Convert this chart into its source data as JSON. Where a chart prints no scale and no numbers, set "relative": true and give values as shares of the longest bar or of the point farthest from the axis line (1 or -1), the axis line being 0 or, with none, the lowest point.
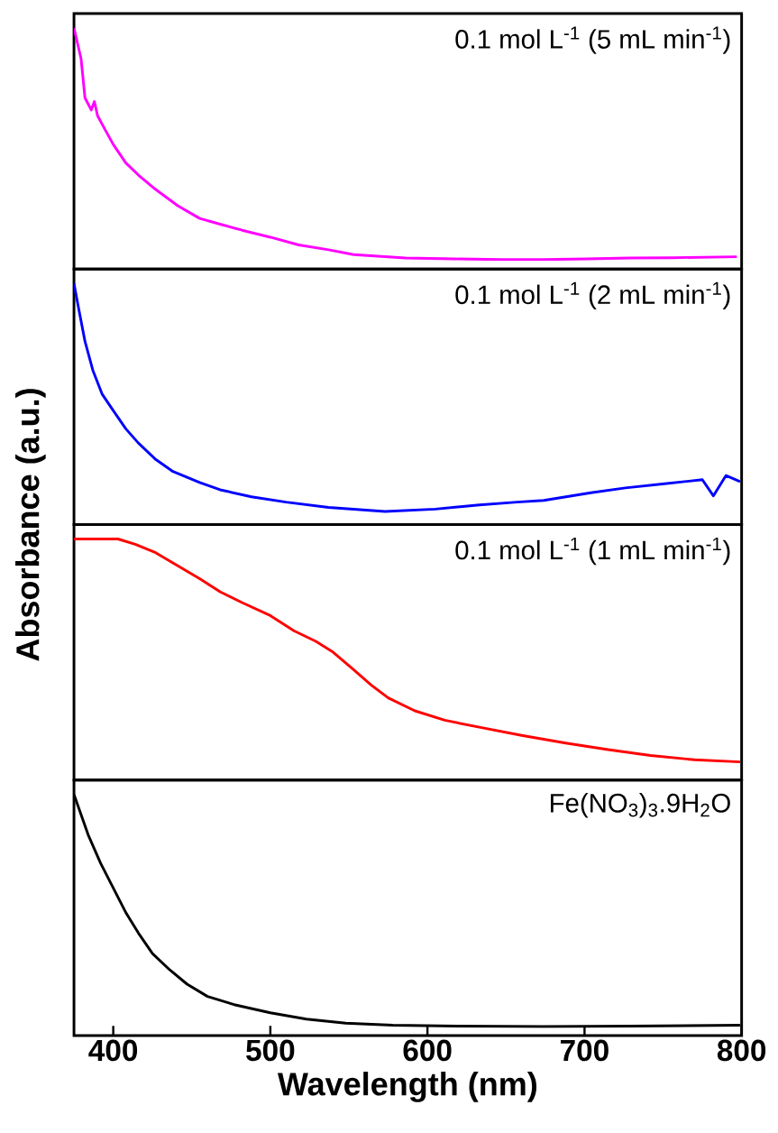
{
  "chart_data": [
    {
      "type": "line",
      "relative": true,
      "ylabel": "Absorbance (a.u.)",
      "xlim": [
        375,
        800
      ],
      "tick_labels": false,
      "x": [
        375,
        379.5,
        382,
        386,
        388,
        390,
        395,
        400,
        408,
        416,
        427,
        441,
        455,
        468,
        482,
        500,
        518,
        537,
        553,
        586,
        617,
        647,
        674,
        701,
        729,
        756,
        797
      ],
      "series": [
        {
          "name": "0.1 mol L$^{-1}$ (5 mL min$^{-1}$)",
          "color": "#ff00ff",
          "values": [
            1.0,
            0.873,
            0.71,
            0.66,
            0.695,
            0.636,
            0.576,
            0.517,
            0.44,
            0.39,
            0.33,
            0.263,
            0.21,
            0.186,
            0.161,
            0.132,
            0.1,
            0.08,
            0.06,
            0.046,
            0.042,
            0.039,
            0.039,
            0.042,
            0.046,
            0.047,
            0.051
          ]
        }
      ]
    },
    {
      "type": "line",
      "relative": true,
      "xlim": [
        375,
        800
      ],
      "tick_labels": false,
      "x": [
        375,
        378,
        382,
        387,
        393,
        400,
        408,
        416,
        427,
        438,
        455,
        468,
        488,
        510,
        537,
        573,
        605,
        633,
        657,
        674,
        704,
        726,
        751,
        775,
        782,
        790,
        799
      ],
      "series": [
        {
          "name": "0.1 mol L$^{-1}$ (2 mL min$^{-1}$)",
          "color": "#0000ff",
          "values": [
            1.0,
            0.895,
            0.76,
            0.64,
            0.54,
            0.473,
            0.397,
            0.338,
            0.27,
            0.22,
            0.174,
            0.144,
            0.115,
            0.093,
            0.071,
            0.054,
            0.064,
            0.081,
            0.093,
            0.1,
            0.132,
            0.152,
            0.169,
            0.186,
            0.119,
            0.203,
            0.178
          ]
        }
      ]
    },
    {
      "type": "line",
      "relative": true,
      "xlim": [
        375,
        800
      ],
      "tick_labels": false,
      "x": [
        375,
        403,
        414,
        427,
        441,
        455,
        468,
        482,
        500,
        515,
        529,
        540,
        553,
        564,
        575,
        592,
        611,
        633,
        660,
        688,
        715,
        742,
        770,
        799
      ],
      "series": [
        {
          "name": "0.1 mol L$^{-1}$ (1 mL min$^{-1}$)",
          "color": "#ff0000",
          "values": [
            1.0,
            1.0,
            0.978,
            0.943,
            0.889,
            0.835,
            0.781,
            0.736,
            0.682,
            0.619,
            0.575,
            0.53,
            0.458,
            0.395,
            0.341,
            0.287,
            0.248,
            0.219,
            0.185,
            0.153,
            0.126,
            0.102,
            0.084,
            0.075
          ]
        }
      ]
    },
    {
      "type": "line",
      "relative": true,
      "xlabel": "Wavelength (nm)",
      "xlim": [
        375,
        800
      ],
      "xticks": [
        400,
        500,
        600,
        700,
        800
      ],
      "tick_labels": "x",
      "x": [
        375,
        384,
        392,
        400,
        408,
        416,
        425,
        436,
        447,
        460,
        477,
        500,
        523,
        548,
        578,
        619,
        674,
        729,
        799
      ],
      "series": [
        {
          "name": "Fe(NO$_{3}$)$_{3}$.9H$_{2}$O",
          "color": "#000000",
          "values": [
            1.0,
            0.833,
            0.714,
            0.612,
            0.51,
            0.425,
            0.34,
            0.272,
            0.213,
            0.162,
            0.128,
            0.094,
            0.068,
            0.051,
            0.043,
            0.039,
            0.037,
            0.039,
            0.043
          ]
        }
      ]
    }
  ]
}
